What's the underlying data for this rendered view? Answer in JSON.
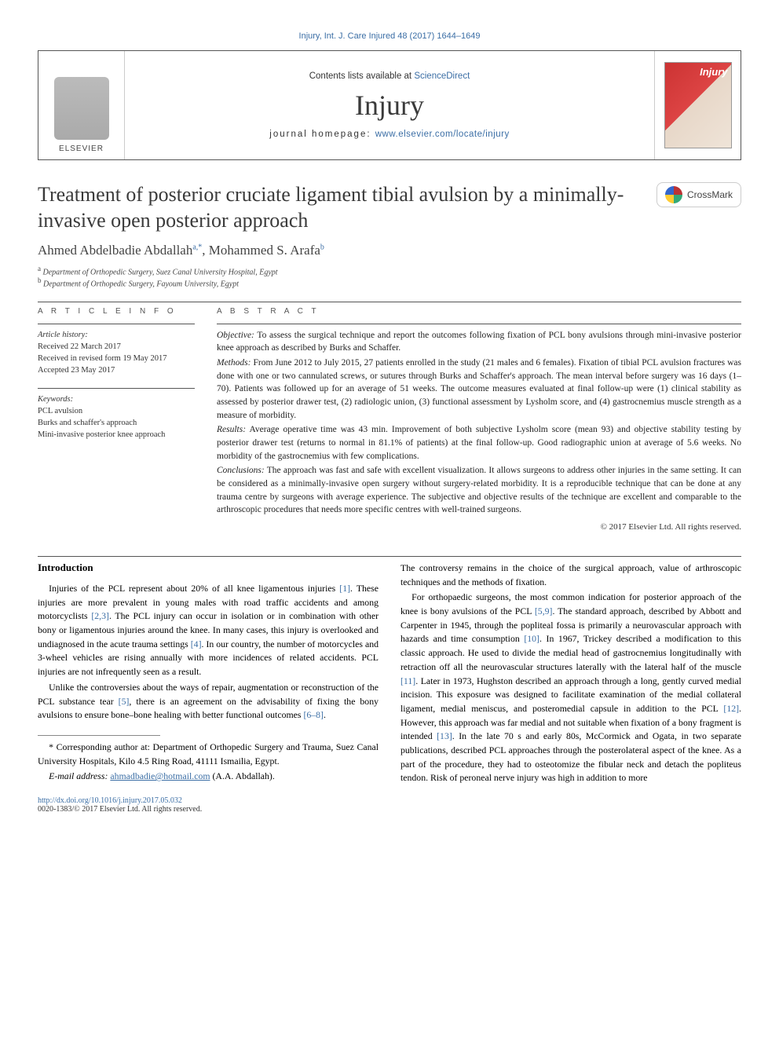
{
  "running_head": "Injury, Int. J. Care Injured 48 (2017) 1644–1649",
  "masthead": {
    "contents_prefix": "Contents lists available at ",
    "contents_link": "ScienceDirect",
    "journal": "Injury",
    "homepage_prefix": "journal homepage: ",
    "homepage_link": "www.elsevier.com/locate/injury",
    "publisher_logo": "ELSEVIER",
    "cover_title": "Injury"
  },
  "crossmark_label": "CrossMark",
  "article": {
    "title": "Treatment of posterior cruciate ligament tibial avulsion by a minimally-invasive open posterior approach",
    "authors_html": "Ahmed Abdelbadie Abdallah",
    "author1": "Ahmed Abdelbadie Abdallah",
    "author1_sup": "a,*",
    "author2": "Mohammed S. Arafa",
    "author2_sup": "b",
    "affiliations": [
      {
        "label": "a",
        "text": "Department of Orthopedic Surgery, Suez Canal University Hospital, Egypt"
      },
      {
        "label": "b",
        "text": "Department of Orthopedic Surgery, Fayoum University, Egypt"
      }
    ]
  },
  "article_info": {
    "heading": "A R T I C L E   I N F O",
    "history_label": "Article history:",
    "received": "Received 22 March 2017",
    "revised": "Received in revised form 19 May 2017",
    "accepted": "Accepted 23 May 2017",
    "keywords_label": "Keywords:",
    "keywords": [
      "PCL avulsion",
      "Burks and schaffer's approach",
      "Mini-invasive posterior knee approach"
    ]
  },
  "abstract": {
    "heading": "A B S T R A C T",
    "objective_label": "Objective:",
    "objective": "To assess the surgical technique and report the outcomes following fixation of PCL bony avulsions through mini-invasive posterior knee approach as described by Burks and Schaffer.",
    "methods_label": "Methods:",
    "methods": "From June 2012 to July 2015, 27 patients enrolled in the study (21 males and 6 females). Fixation of tibial PCL avulsion fractures was done with one or two cannulated screws, or sutures through Burks and Schaffer's approach. The mean interval before surgery was 16 days (1–70). Patients was followed up for an average of 51 weeks. The outcome measures evaluated at final follow-up were (1) clinical stability as assessed by posterior drawer test, (2) radiologic union, (3) functional assessment by Lysholm score, and (4) gastrocnemius muscle strength as a measure of morbidity.",
    "results_label": "Results:",
    "results": "Average operative time was 43 min. Improvement of both subjective Lysholm score (mean 93) and objective stability testing by posterior drawer test (returns to normal in 81.1% of patients) at the final follow-up. Good radiographic union at average of 5.6 weeks. No morbidity of the gastrocnemius with few complications.",
    "conclusions_label": "Conclusions:",
    "conclusions": "The approach was fast and safe with excellent visualization. It allows surgeons to address other injuries in the same setting. It can be considered as a minimally-invasive open surgery without surgery-related morbidity. It is a reproducible technique that can be done at any trauma centre by surgeons with average experience. The subjective and objective results of the technique are excellent and comparable to the arthroscopic procedures that needs more specific centres with well-trained surgeons.",
    "copyright": "© 2017 Elsevier Ltd. All rights reserved."
  },
  "body": {
    "intro_heading": "Introduction",
    "left_p1": "Injuries of the PCL represent about 20% of all knee ligamentous injuries [1]. These injuries are more prevalent in young males with road traffic accidents and among motorcyclists [2,3]. The PCL injury can occur in isolation or in combination with other bony or ligamentous injuries around the knee. In many cases, this injury is overlooked and undiagnosed in the acute trauma settings [4]. In our country, the number of motorcycles and 3-wheel vehicles are rising annually with more incidences of related accidents. PCL injuries are not infrequently seen as a result.",
    "left_p2": "Unlike the controversies about the ways of repair, augmentation or reconstruction of the PCL substance tear [5], there is an agreement on the advisability of fixing the bony avulsions to ensure bone–bone healing with better functional outcomes [6–8].",
    "right_p1": "The controversy remains in the choice of the surgical approach, value of arthroscopic techniques and the methods of fixation.",
    "right_p2": "For orthopaedic surgeons, the most common indication for posterior approach of the knee is bony avulsions of the PCL [5,9]. The standard approach, described by Abbott and Carpenter in 1945, through the popliteal fossa is primarily a neurovascular approach with hazards and time consumption [10]. In 1967, Trickey described a modification to this classic approach. He used to divide the medial head of gastrocnemius longitudinally with retraction off all the neurovascular structures laterally with the lateral half of the muscle [11]. Later in 1973, Hughston described an approach through a long, gently curved medial incision. This exposure was designed to facilitate examination of the medial collateral ligament, medial meniscus, and posteromedial capsule in addition to the PCL [12]. However, this approach was far medial and not suitable when fixation of a bony fragment is intended [13]. In the late 70 s and early 80s, McCormick and Ogata, in two separate publications, described PCL approaches through the posterolateral aspect of the knee. As a part of the procedure, they had to osteotomize the fibular neck and detach the popliteus tendon. Risk of peroneal nerve injury was high in addition to more"
  },
  "footnotes": {
    "corresp_marker": "*",
    "corresp": "Corresponding author at: Department of Orthopedic Surgery and Trauma, Suez Canal University Hospitals, Kilo 4.5 Ring Road, 41111 Ismailia, Egypt.",
    "email_label": "E-mail address:",
    "email": "ahmadbadie@hotmail.com",
    "email_owner": "(A.A. Abdallah)."
  },
  "footer": {
    "doi": "http://dx.doi.org/10.1016/j.injury.2017.05.032",
    "issn_line": "0020-1383/© 2017 Elsevier Ltd. All rights reserved."
  },
  "refs": {
    "r1": "[1]",
    "r23": "[2,3]",
    "r4": "[4]",
    "r5": "[5]",
    "r68": "[6–8]",
    "r59": "[5,9]",
    "r10": "[10]",
    "r11": "[11]",
    "r12": "[12]",
    "r13": "[13]"
  },
  "colors": {
    "link": "#3b6ea5",
    "text": "#000000",
    "muted": "#555555"
  },
  "fonts": {
    "body_family": "Georgia, Times New Roman, serif",
    "sans_family": "Arial, sans-serif",
    "title_size_pt": 19,
    "journal_size_pt": 27,
    "body_size_pt": 9,
    "abstract_size_pt": 8.5
  }
}
